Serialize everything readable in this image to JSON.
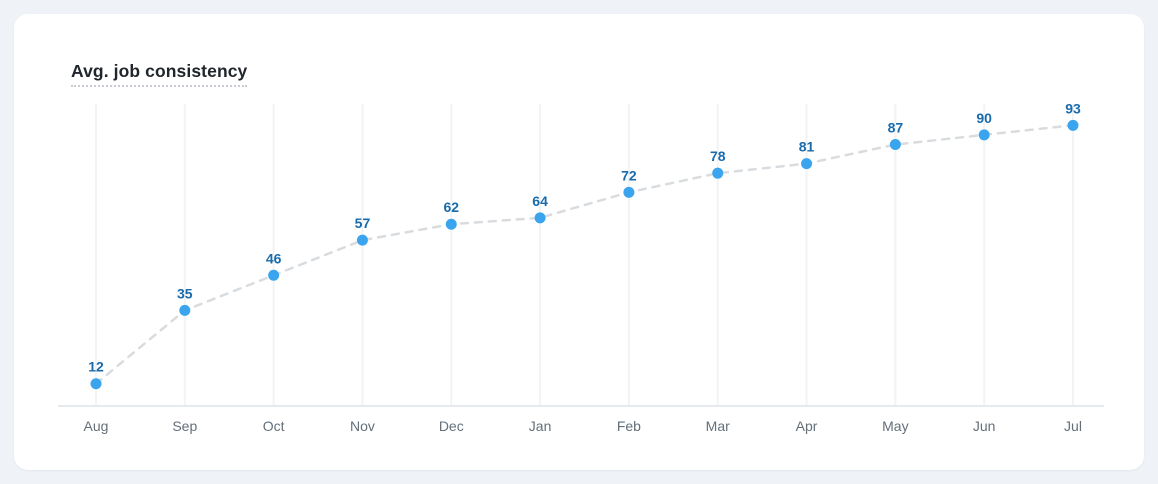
{
  "card": {
    "title": "Avg. job consistency"
  },
  "chart_data": {
    "type": "line",
    "title": "Avg. job consistency",
    "categories": [
      "Aug",
      "Sep",
      "Oct",
      "Nov",
      "Dec",
      "Jan",
      "Feb",
      "Mar",
      "Apr",
      "May",
      "Jun",
      "Jul"
    ],
    "values": [
      12,
      35,
      46,
      57,
      62,
      64,
      72,
      78,
      81,
      87,
      90,
      93
    ],
    "xlabel": "",
    "ylabel": "",
    "ylim": [
      0,
      100
    ],
    "grid": "vertical-only",
    "legend": "none",
    "line_style": "dashed",
    "point_labels": "above-each-point",
    "colors": {
      "page_bg": "#eff3f7",
      "card_bg": "#ffffff",
      "title": "#21262c",
      "title_underline": "#c9cdd3",
      "point": "#3aa5ee",
      "value_label": "#1a6bab",
      "line": "#d9dcdf",
      "grid": "#f1f3f5",
      "axis": "#e7eaed",
      "tick_label": "#646f7a"
    }
  }
}
